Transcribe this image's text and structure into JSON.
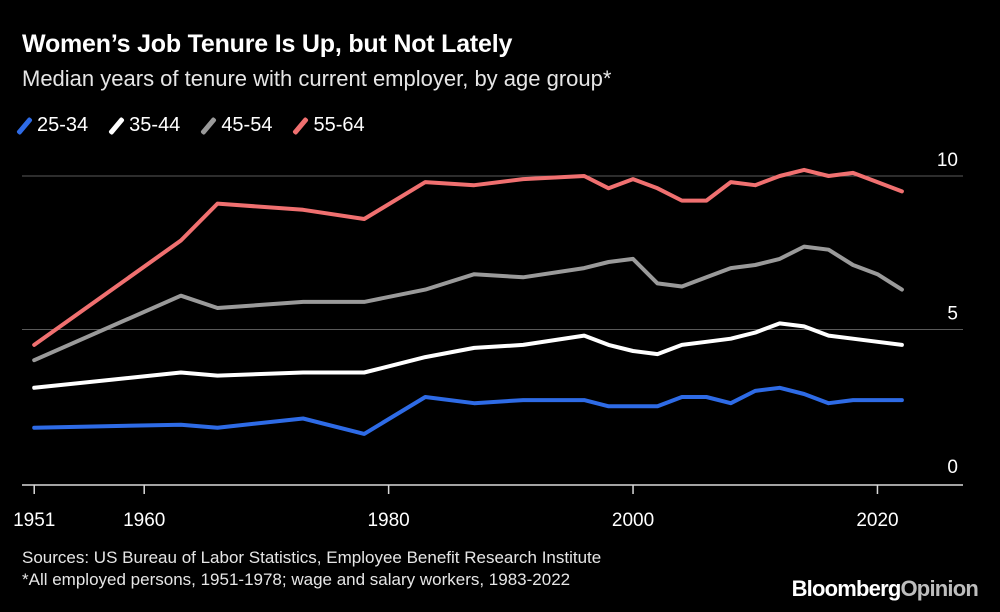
{
  "header": {
    "title": "Women’s Job Tenure Is Up, but Not Lately",
    "subtitle": "Median years of tenure with current employer, by age group*"
  },
  "footer": {
    "sources": "Sources: US Bureau of Labor Statistics, Employee Benefit Research Institute",
    "note": "*All employed persons, 1951-1978; wage and salary workers, 1983-2022",
    "brand_main": "Bloomberg",
    "brand_accent": "Opinion"
  },
  "chart_data": {
    "type": "line",
    "title": "Women’s Job Tenure Is Up, but Not Lately",
    "subtitle": "Median years of tenure with current employer, by age group*",
    "xlim": [
      1950,
      2027
    ],
    "ylim": [
      -0.7,
      10
    ],
    "x_ticks": [
      1951,
      1960,
      1980,
      2000,
      2020
    ],
    "y_ticks": [
      0,
      5,
      10
    ],
    "y_tick_side": "right",
    "grid": "horizontal",
    "legend": "top-left",
    "series": [
      {
        "name": "25-34",
        "color": "#2e6be6",
        "points": [
          [
            1951,
            1.8
          ],
          [
            1963,
            1.9
          ],
          [
            1966,
            1.8
          ],
          [
            1973,
            2.1
          ],
          [
            1978,
            1.6
          ],
          [
            1983,
            2.8
          ],
          [
            1987,
            2.6
          ],
          [
            1991,
            2.7
          ],
          [
            1996,
            2.7
          ],
          [
            1998,
            2.5
          ],
          [
            2002,
            2.5
          ],
          [
            2004,
            2.8
          ],
          [
            2006,
            2.8
          ],
          [
            2008,
            2.6
          ],
          [
            2010,
            3.0
          ],
          [
            2012,
            3.1
          ],
          [
            2014,
            2.9
          ],
          [
            2016,
            2.6
          ],
          [
            2018,
            2.7
          ],
          [
            2020,
            2.7
          ],
          [
            2022,
            2.7
          ]
        ]
      },
      {
        "name": "35-44",
        "color": "#ffffff",
        "points": [
          [
            1951,
            3.1
          ],
          [
            1963,
            3.6
          ],
          [
            1966,
            3.5
          ],
          [
            1973,
            3.6
          ],
          [
            1978,
            3.6
          ],
          [
            1983,
            4.1
          ],
          [
            1987,
            4.4
          ],
          [
            1991,
            4.5
          ],
          [
            1996,
            4.8
          ],
          [
            1998,
            4.5
          ],
          [
            2000,
            4.3
          ],
          [
            2002,
            4.2
          ],
          [
            2004,
            4.5
          ],
          [
            2006,
            4.6
          ],
          [
            2008,
            4.7
          ],
          [
            2010,
            4.9
          ],
          [
            2012,
            5.2
          ],
          [
            2014,
            5.1
          ],
          [
            2016,
            4.8
          ],
          [
            2018,
            4.7
          ],
          [
            2020,
            4.6
          ],
          [
            2022,
            4.5
          ]
        ]
      },
      {
        "name": "45-54",
        "color": "#9a9a9a",
        "points": [
          [
            1951,
            4.0
          ],
          [
            1963,
            6.1
          ],
          [
            1966,
            5.7
          ],
          [
            1973,
            5.9
          ],
          [
            1978,
            5.9
          ],
          [
            1983,
            6.3
          ],
          [
            1987,
            6.8
          ],
          [
            1991,
            6.7
          ],
          [
            1996,
            7.0
          ],
          [
            1998,
            7.2
          ],
          [
            2000,
            7.3
          ],
          [
            2002,
            6.5
          ],
          [
            2004,
            6.4
          ],
          [
            2006,
            6.7
          ],
          [
            2008,
            7.0
          ],
          [
            2010,
            7.1
          ],
          [
            2012,
            7.3
          ],
          [
            2014,
            7.7
          ],
          [
            2016,
            7.6
          ],
          [
            2018,
            7.1
          ],
          [
            2020,
            6.8
          ],
          [
            2022,
            6.3
          ]
        ]
      },
      {
        "name": "55-64",
        "color": "#f07070",
        "points": [
          [
            1951,
            4.5
          ],
          [
            1963,
            7.9
          ],
          [
            1966,
            9.1
          ],
          [
            1973,
            8.9
          ],
          [
            1978,
            8.6
          ],
          [
            1983,
            9.8
          ],
          [
            1987,
            9.7
          ],
          [
            1991,
            9.9
          ],
          [
            1996,
            10.0
          ],
          [
            1998,
            9.6
          ],
          [
            2000,
            9.9
          ],
          [
            2002,
            9.6
          ],
          [
            2004,
            9.2
          ],
          [
            2006,
            9.2
          ],
          [
            2008,
            9.8
          ],
          [
            2010,
            9.7
          ],
          [
            2012,
            10.0
          ],
          [
            2014,
            10.2
          ],
          [
            2016,
            10.0
          ],
          [
            2018,
            10.1
          ],
          [
            2020,
            9.8
          ],
          [
            2022,
            9.5
          ]
        ]
      }
    ]
  }
}
